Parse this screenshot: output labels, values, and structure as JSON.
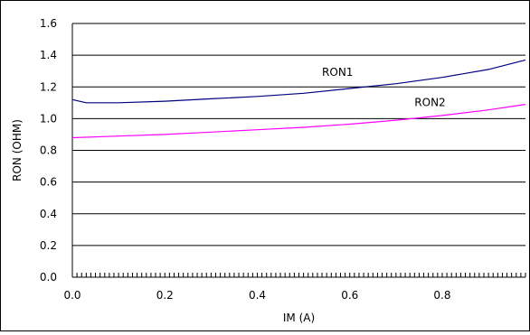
{
  "chart_data": {
    "type": "line",
    "xlabel": "IM (A)",
    "ylabel": "RON (OHM)",
    "xlim": [
      0,
      0.98
    ],
    "ylim": [
      0,
      1.6
    ],
    "x_ticks": [
      "0.0",
      "0.2",
      "0.4",
      "0.6",
      "0.8"
    ],
    "y_ticks": [
      "0.0",
      "0.2",
      "0.4",
      "0.6",
      "0.8",
      "1.0",
      "1.2",
      "1.4",
      "1.6"
    ],
    "grid": "horizontal",
    "series": [
      {
        "name": "RON1",
        "color": "#000080",
        "x": [
          0.0,
          0.03,
          0.1,
          0.2,
          0.3,
          0.4,
          0.5,
          0.6,
          0.7,
          0.8,
          0.9,
          0.98
        ],
        "y": [
          1.12,
          1.1,
          1.1,
          1.11,
          1.125,
          1.14,
          1.16,
          1.19,
          1.22,
          1.26,
          1.31,
          1.37
        ]
      },
      {
        "name": "RON2",
        "color": "#FF00FF",
        "x": [
          0.0,
          0.1,
          0.2,
          0.3,
          0.4,
          0.5,
          0.6,
          0.7,
          0.8,
          0.9,
          0.98
        ],
        "y": [
          0.88,
          0.89,
          0.9,
          0.915,
          0.93,
          0.945,
          0.965,
          0.99,
          1.02,
          1.055,
          1.09
        ]
      }
    ]
  }
}
